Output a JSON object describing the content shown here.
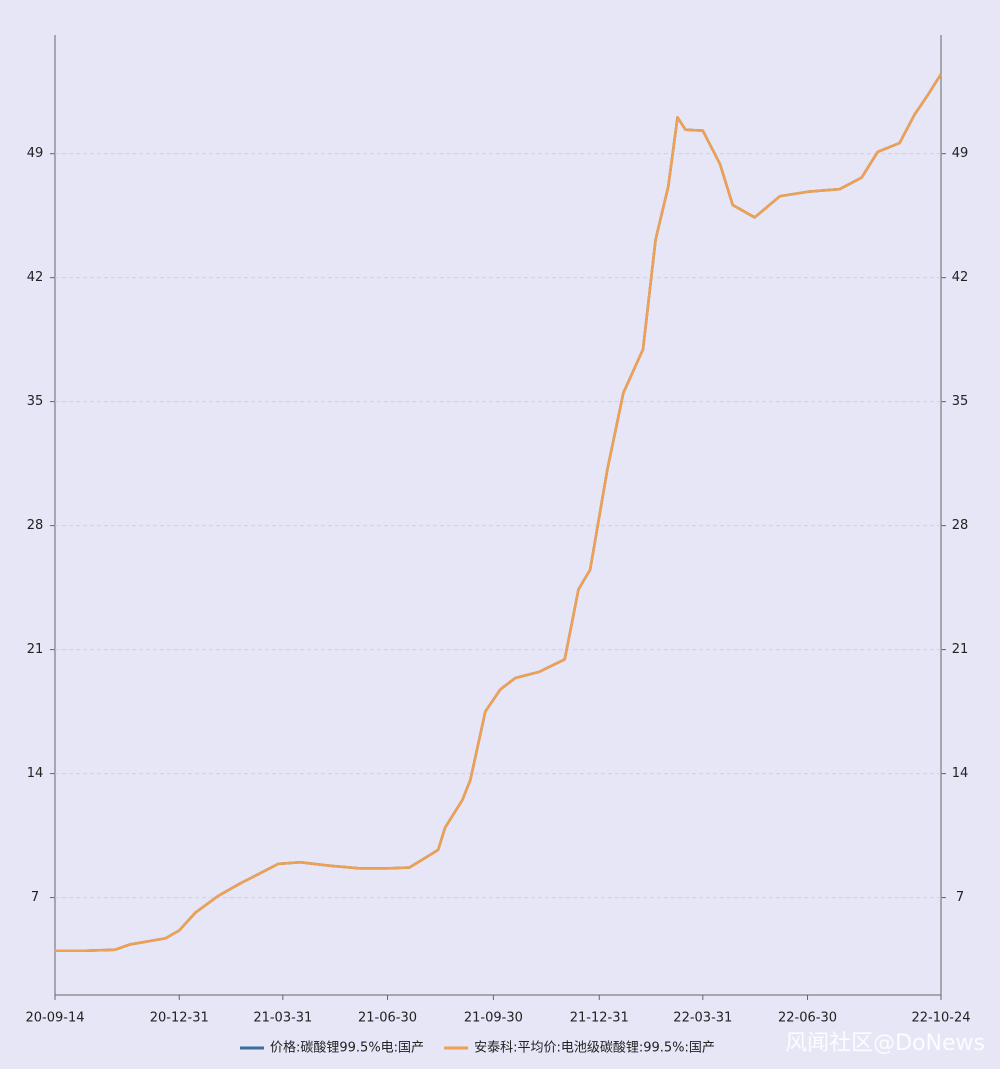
{
  "chart_data": {
    "type": "line",
    "x": [
      "20-09-14",
      "20-10-10",
      "20-11-05",
      "20-11-18",
      "20-12-19",
      "20-12-31",
      "21-01-14",
      "21-02-03",
      "21-02-22",
      "21-03-09",
      "21-03-27",
      "21-04-15",
      "21-05-11",
      "21-06-06",
      "21-06-30",
      "21-07-19",
      "21-08-02",
      "21-08-13",
      "21-08-19",
      "21-09-03",
      "21-09-10",
      "21-09-23",
      "21-10-06",
      "21-10-19",
      "21-11-09",
      "21-12-01",
      "21-12-13",
      "21-12-23",
      "22-01-07",
      "22-01-21",
      "22-02-07",
      "22-02-18",
      "22-03-01",
      "22-03-09",
      "22-03-16",
      "22-03-31",
      "22-04-15",
      "22-04-26",
      "22-05-15",
      "22-06-06",
      "22-06-30",
      "22-07-28",
      "22-08-16",
      "22-08-30",
      "22-09-18",
      "22-10-01",
      "22-10-13",
      "22-10-24"
    ],
    "series": [
      {
        "name": "价格:碳酸锂99.5%电:国产",
        "color": "#3a6f9a",
        "values": [
          4.0,
          4.0,
          4.05,
          4.35,
          4.7,
          5.15,
          6.15,
          7.1,
          7.8,
          8.3,
          8.9,
          9.0,
          8.8,
          8.65,
          8.65,
          8.7,
          9.25,
          9.7,
          10.95,
          12.5,
          13.65,
          17.5,
          18.75,
          19.4,
          19.75,
          20.45,
          24.4,
          25.5,
          31.15,
          35.5,
          37.95,
          44.15,
          47.15,
          51.05,
          50.35,
          50.3,
          48.4,
          46.1,
          45.4,
          46.6,
          46.85,
          47.0,
          47.65,
          49.1,
          49.6,
          51.2,
          52.35,
          53.5
        ]
      },
      {
        "name": "安泰科:平均价:电池级碳酸锂:99.5%:国产",
        "color": "#f0a050",
        "values": [
          4.0,
          4.0,
          4.05,
          4.35,
          4.7,
          5.15,
          6.15,
          7.1,
          7.8,
          8.3,
          8.9,
          9.0,
          8.8,
          8.65,
          8.65,
          8.7,
          9.25,
          9.7,
          10.95,
          12.5,
          13.65,
          17.5,
          18.75,
          19.4,
          19.75,
          20.45,
          24.4,
          25.5,
          31.15,
          35.5,
          37.95,
          44.15,
          47.15,
          51.05,
          50.35,
          50.3,
          48.4,
          46.1,
          45.4,
          46.6,
          46.85,
          47.0,
          47.65,
          49.1,
          49.6,
          51.2,
          52.35,
          53.5
        ]
      }
    ],
    "xlim": [
      "20-09-14",
      "22-10-24"
    ],
    "xticks": [
      "20-09-14",
      "20-12-31",
      "21-03-31",
      "21-06-30",
      "21-09-30",
      "21-12-31",
      "22-03-31",
      "22-06-30",
      "22-10-24"
    ],
    "ylim": [
      1.5,
      55.7
    ],
    "yticks": [
      7,
      14,
      21,
      28,
      35,
      42,
      49
    ],
    "grid": true,
    "legend": "bottom",
    "watermark": "风闻社区@DoNews"
  }
}
